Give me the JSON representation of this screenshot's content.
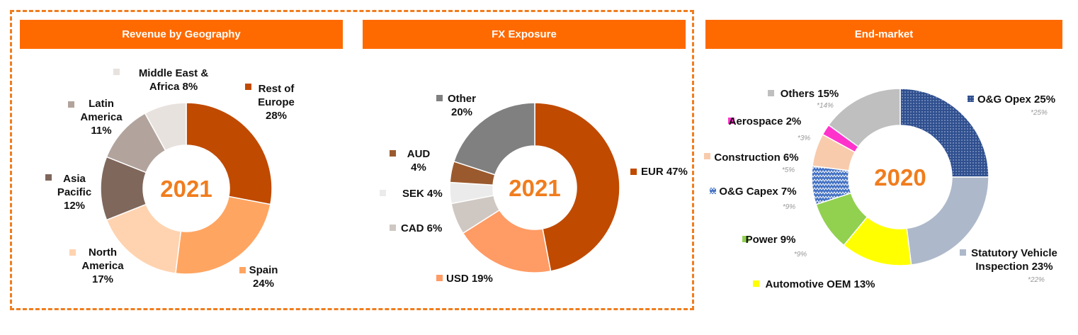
{
  "chart_data": [
    {
      "type": "pie",
      "title": "Revenue by Geography",
      "center_label": "2021",
      "slices": [
        {
          "label": "Rest of Europe",
          "lines": [
            "Rest of",
            "Europe",
            "28%"
          ],
          "value": 28,
          "color": "#c04a00"
        },
        {
          "label": "Spain",
          "lines": [
            "Spain",
            "24%"
          ],
          "value": 24,
          "color": "#ffa562"
        },
        {
          "label": "North America",
          "lines": [
            "North",
            "America",
            "17%"
          ],
          "value": 17,
          "color": "#ffd3b0"
        },
        {
          "label": "Asia Pacific",
          "lines": [
            "Asia",
            "Pacific",
            "12%"
          ],
          "value": 12,
          "color": "#7f675b"
        },
        {
          "label": "Latin America",
          "lines": [
            "Latin",
            "America",
            "11%"
          ],
          "value": 11,
          "color": "#b2a49c"
        },
        {
          "label": "Middle East & Africa",
          "lines": [
            "Middle East &",
            "Africa 8%"
          ],
          "value": 8,
          "color": "#e8e2de"
        }
      ]
    },
    {
      "type": "pie",
      "title": "FX Exposure",
      "center_label": "2021",
      "slices": [
        {
          "label": "EUR",
          "lines": [
            "EUR 47%"
          ],
          "value": 47,
          "color": "#c04a00"
        },
        {
          "label": "USD",
          "lines": [
            "USD 19%"
          ],
          "value": 19,
          "color": "#ff9b64"
        },
        {
          "label": "CAD",
          "lines": [
            "CAD 6%"
          ],
          "value": 6,
          "color": "#cfc7c2"
        },
        {
          "label": "SEK",
          "lines": [
            "SEK 4%"
          ],
          "value": 4,
          "color": "#ebebeb"
        },
        {
          "label": "AUD",
          "lines": [
            "AUD",
            "4%"
          ],
          "value": 4,
          "color": "#9a5a2e"
        },
        {
          "label": "Other",
          "lines": [
            "Other",
            "20%"
          ],
          "value": 20,
          "color": "#808080"
        }
      ]
    },
    {
      "type": "pie",
      "title": "End-market",
      "center_label": "2020",
      "slices": [
        {
          "label": "O&G Opex",
          "lines": [
            "O&G Opex 25%"
          ],
          "value": 25,
          "color": "#2f4f8f",
          "pattern": "dots",
          "prior": "*25%"
        },
        {
          "label": "Statutory Vehicle Inspection",
          "lines": [
            "Statutory Vehicle",
            "Inspection 23%"
          ],
          "value": 23,
          "color": "#adb9ca",
          "prior": "*22%"
        },
        {
          "label": "Automotive OEM",
          "lines": [
            "Automotive OEM 13%"
          ],
          "value": 13,
          "color": "#ffff00",
          "prior": ""
        },
        {
          "label": "Power",
          "lines": [
            "Power 9%"
          ],
          "value": 9,
          "color": "#92d050",
          "prior": "*9%"
        },
        {
          "label": "O&G Capex",
          "lines": [
            "O&G Capex 7%"
          ],
          "value": 7,
          "color": "#4472c4",
          "pattern": "zigzag",
          "prior": "*9%"
        },
        {
          "label": "Construction",
          "lines": [
            "Construction 6%"
          ],
          "value": 6,
          "color": "#f8cbad",
          "prior": "*5%"
        },
        {
          "label": "Aerospace",
          "lines": [
            "Aerospace 2%"
          ],
          "value": 2,
          "color": "#ff33cc",
          "prior": "*3%"
        },
        {
          "label": "Others",
          "lines": [
            "Others 15%"
          ],
          "value": 15,
          "color": "#bfbfbf",
          "prior": "*14%"
        }
      ]
    }
  ]
}
